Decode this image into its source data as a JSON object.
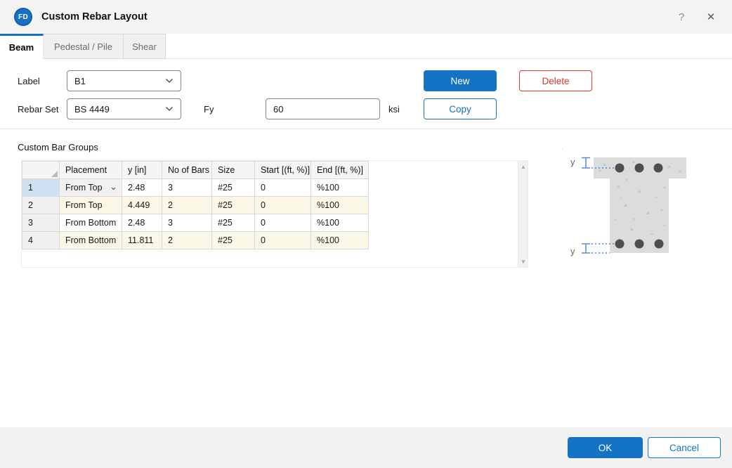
{
  "window": {
    "logo_text": "FD",
    "title": "Custom Rebar Layout",
    "help_icon": "?",
    "close_icon": "✕"
  },
  "tabs": [
    {
      "label": "Beam",
      "active": true
    },
    {
      "label": "Pedestal / Pile",
      "active": false
    },
    {
      "label": "Shear",
      "active": false
    }
  ],
  "form": {
    "label_label": "Label",
    "label_value": "B1",
    "rebar_set_label": "Rebar Set",
    "rebar_set_value": "BS 4449",
    "fy_label": "Fy",
    "fy_value": "60",
    "fy_unit": "ksi",
    "new_button": "New",
    "delete_button": "Delete",
    "copy_button": "Copy"
  },
  "table": {
    "title": "Custom Bar Groups",
    "columns": [
      "Placement",
      "y [in]",
      "No of Bars",
      "Size",
      "Start [(ft, %)]",
      "End [(ft, %)]"
    ],
    "rows": [
      {
        "num": "1",
        "placement": "From Top",
        "y": "2.48",
        "bars": "3",
        "size": "#25",
        "start": "0",
        "end": "%100"
      },
      {
        "num": "2",
        "placement": "From Top",
        "y": "4.449",
        "bars": "2",
        "size": "#25",
        "start": "0",
        "end": "%100"
      },
      {
        "num": "3",
        "placement": "From Bottom",
        "y": "2.48",
        "bars": "3",
        "size": "#25",
        "start": "0",
        "end": "%100"
      },
      {
        "num": "4",
        "placement": "From Bottom",
        "y": "11.811",
        "bars": "2",
        "size": "#25",
        "start": "0",
        "end": "%100"
      }
    ]
  },
  "diagram": {
    "top_dim_label": "y",
    "bottom_dim_label": "y"
  },
  "footer": {
    "ok_button": "OK",
    "cancel_button": "Cancel"
  },
  "colors": {
    "accent": "#1473c5",
    "danger": "#d03b2e",
    "selheader": "#cfe0f2",
    "creamrow": "#fbf7e6",
    "dimension": "#4a86d8",
    "concrete": "#dcdcdc",
    "rebar": "#4f4f4f"
  }
}
